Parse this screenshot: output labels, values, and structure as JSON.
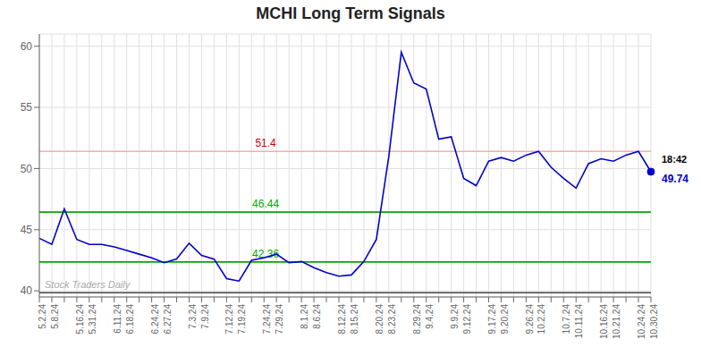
{
  "chart_data": {
    "type": "line",
    "title": "MCHI Long Term Signals",
    "categories": [
      "5.2.24",
      "5.8.24",
      null,
      "5.16.24",
      "5.31.24",
      null,
      "6.11.24",
      "6.18.24",
      null,
      "6.24.24",
      "6.27.24",
      null,
      "7.3.24",
      "7.9.24",
      null,
      "7.12.24",
      "7.19.24",
      null,
      "7.24.24",
      "7.29.24",
      null,
      "8.1.24",
      "8.6.24",
      null,
      "8.12.24",
      "8.15.24",
      null,
      "8.20.24",
      "8.23.24",
      null,
      "8.29.24",
      "9.4.24",
      null,
      "9.9.24",
      "9.12.24",
      null,
      "9.17.24",
      "9.20.24",
      null,
      "9.26.24",
      "10.2.24",
      null,
      "10.7.24",
      "10.11.24",
      null,
      "10.16.24",
      "10.21.24",
      null,
      "10.24.24",
      "10.30.24"
    ],
    "values": [
      44.3,
      43.8,
      46.7,
      44.2,
      43.8,
      43.8,
      43.6,
      43.3,
      43.0,
      42.7,
      42.3,
      42.6,
      43.9,
      42.9,
      42.6,
      41.0,
      40.8,
      42.5,
      42.7,
      43.0,
      42.3,
      42.4,
      41.9,
      41.5,
      41.2,
      41.3,
      42.4,
      44.2,
      51.0,
      59.5,
      57.0,
      56.5,
      52.4,
      52.6,
      49.2,
      48.6,
      50.6,
      50.9,
      50.6,
      51.1,
      51.4,
      50.1,
      49.2,
      48.4,
      50.4,
      50.8,
      50.6,
      51.1,
      51.4,
      49.74
    ],
    "color": "#0000cc",
    "ylim": [
      39.5,
      61.0
    ],
    "yticks": [
      40,
      45,
      50,
      55,
      60
    ],
    "grid": true,
    "hlines": [
      {
        "value": 51.4,
        "color": "#ffaaaa",
        "label": "51.4",
        "label_color": "#cc0000"
      },
      {
        "value": 46.44,
        "color": "#00aa00",
        "label": "46.44",
        "label_color": "#00aa00"
      },
      {
        "value": 42.36,
        "color": "#00aa00",
        "label": "42.36",
        "label_color": "#00aa00"
      },
      {
        "value": 39.85,
        "color": "#444444",
        "label": "Stock Traders Daily",
        "label_color": "#aaaaaa"
      }
    ],
    "last_point": {
      "time": "18:42",
      "value": 49.74,
      "color": "#0000cc"
    }
  }
}
